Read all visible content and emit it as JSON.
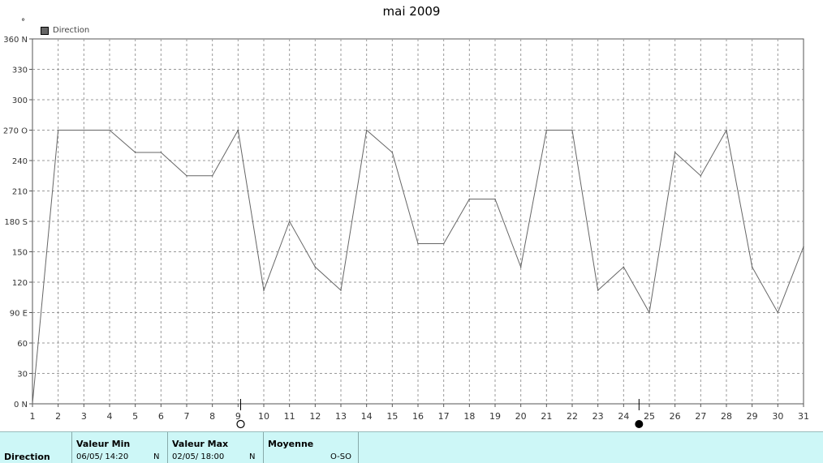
{
  "chart_data": {
    "type": "line",
    "title": "mai 2009",
    "ylabel_mark": "°",
    "legend": [
      {
        "name": "Direction",
        "color": "#666666"
      }
    ],
    "ylim": [
      0,
      360
    ],
    "y_ticks": [
      {
        "value": 0,
        "label": "0 N"
      },
      {
        "value": 30,
        "label": "30"
      },
      {
        "value": 60,
        "label": "60"
      },
      {
        "value": 90,
        "label": "90 E"
      },
      {
        "value": 120,
        "label": "120"
      },
      {
        "value": 150,
        "label": "150"
      },
      {
        "value": 180,
        "label": "180 S"
      },
      {
        "value": 210,
        "label": "210"
      },
      {
        "value": 240,
        "label": "240"
      },
      {
        "value": 270,
        "label": "270 O"
      },
      {
        "value": 300,
        "label": "300"
      },
      {
        "value": 330,
        "label": "330"
      },
      {
        "value": 360,
        "label": "360 N"
      }
    ],
    "x_ticks": [
      "1",
      "2",
      "3",
      "4",
      "5",
      "6",
      "7",
      "8",
      "9",
      "10",
      "11",
      "12",
      "13",
      "14",
      "15",
      "16",
      "17",
      "18",
      "19",
      "20",
      "21",
      "22",
      "23",
      "24",
      "25",
      "26",
      "27",
      "28",
      "29",
      "30",
      "31"
    ],
    "grid": true,
    "series": [
      {
        "name": "Direction",
        "color": "#666666",
        "points": [
          [
            1,
            0
          ],
          [
            2,
            270
          ],
          [
            3,
            270
          ],
          [
            4,
            270
          ],
          [
            5,
            248
          ],
          [
            6,
            248
          ],
          [
            7,
            225
          ],
          [
            8,
            225
          ],
          [
            9,
            270
          ],
          [
            10,
            112
          ],
          [
            11,
            180
          ],
          [
            12,
            135
          ],
          [
            13,
            112
          ],
          [
            14,
            270
          ],
          [
            15,
            248
          ],
          [
            16,
            158
          ],
          [
            17,
            158
          ],
          [
            18,
            202
          ],
          [
            19,
            202
          ],
          [
            20,
            135
          ],
          [
            21,
            270
          ],
          [
            22,
            270
          ],
          [
            23,
            112
          ],
          [
            24,
            135
          ],
          [
            25,
            90
          ],
          [
            26,
            248
          ],
          [
            27,
            225
          ],
          [
            28,
            270
          ],
          [
            29,
            135
          ],
          [
            30,
            90
          ],
          [
            31,
            155
          ]
        ]
      }
    ],
    "moon_markers": [
      {
        "x": 9.1,
        "phase": "full-moon"
      },
      {
        "x": 24.6,
        "phase": "new-moon"
      }
    ]
  },
  "footer": {
    "row_label": "Direction",
    "min": {
      "header": "Valeur Min",
      "value": "06/05/  14:20",
      "dir": "N"
    },
    "max": {
      "header": "Valeur Max",
      "value": "02/05/  18:00",
      "dir": "N"
    },
    "avg": {
      "header": "Moyenne",
      "value": "O-SO"
    }
  }
}
